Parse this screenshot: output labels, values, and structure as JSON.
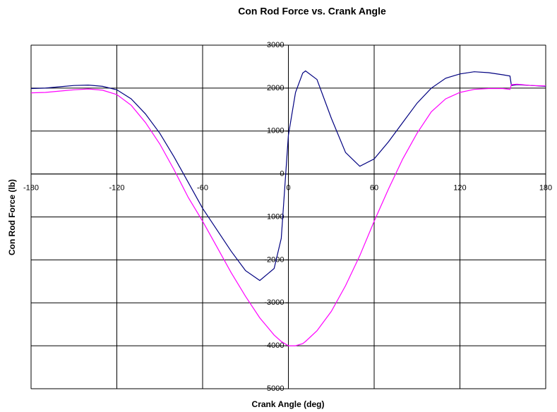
{
  "chart_data": {
    "type": "line",
    "title": "Con Rod Force vs. Crank Angle",
    "x_label": "Crank Angle (deg)",
    "y_label": "Con Rod Force (lb)",
    "x": [
      -180,
      -170,
      -160,
      -150,
      -140,
      -130,
      -120,
      -110,
      -100,
      -90,
      -80,
      -70,
      -60,
      -50,
      -40,
      -30,
      -20,
      -10,
      -5,
      0,
      5,
      10,
      12,
      20,
      30,
      40,
      50,
      60,
      70,
      80,
      90,
      100,
      110,
      120,
      130,
      140,
      150,
      155,
      156,
      160,
      170,
      180
    ],
    "series": [
      {
        "color": "#000080",
        "values": [
          1990,
          2000,
          2030,
          2060,
          2070,
          2040,
          1960,
          1750,
          1400,
          950,
          400,
          -200,
          -800,
          -1300,
          -1800,
          -2250,
          -2480,
          -2200,
          -1500,
          900,
          1900,
          2350,
          2400,
          2200,
          1300,
          500,
          180,
          350,
          750,
          1200,
          1650,
          2000,
          2230,
          2330,
          2380,
          2360,
          2310,
          2280,
          2060,
          2080,
          2060,
          2040
        ]
      },
      {
        "color": "#ff00ff",
        "values": [
          1890,
          1900,
          1930,
          1960,
          1980,
          1950,
          1850,
          1600,
          1200,
          700,
          100,
          -550,
          -1100,
          -1700,
          -2300,
          -2850,
          -3350,
          -3750,
          -3900,
          -4000,
          -4000,
          -3950,
          -3900,
          -3650,
          -3200,
          -2600,
          -1900,
          -1100,
          -350,
          350,
          950,
          1450,
          1750,
          1900,
          1970,
          1990,
          1990,
          1970,
          2080,
          2090,
          2060,
          2050
        ]
      }
    ],
    "xlim": [
      -180,
      180
    ],
    "xticks": [
      -180,
      -120,
      -60,
      0,
      60,
      120,
      180
    ],
    "ylim": [
      -5000,
      3000
    ],
    "yticks": [
      -5000,
      -4000,
      -3000,
      -2000,
      -1000,
      0,
      1000,
      2000,
      3000
    ],
    "grid": true
  }
}
